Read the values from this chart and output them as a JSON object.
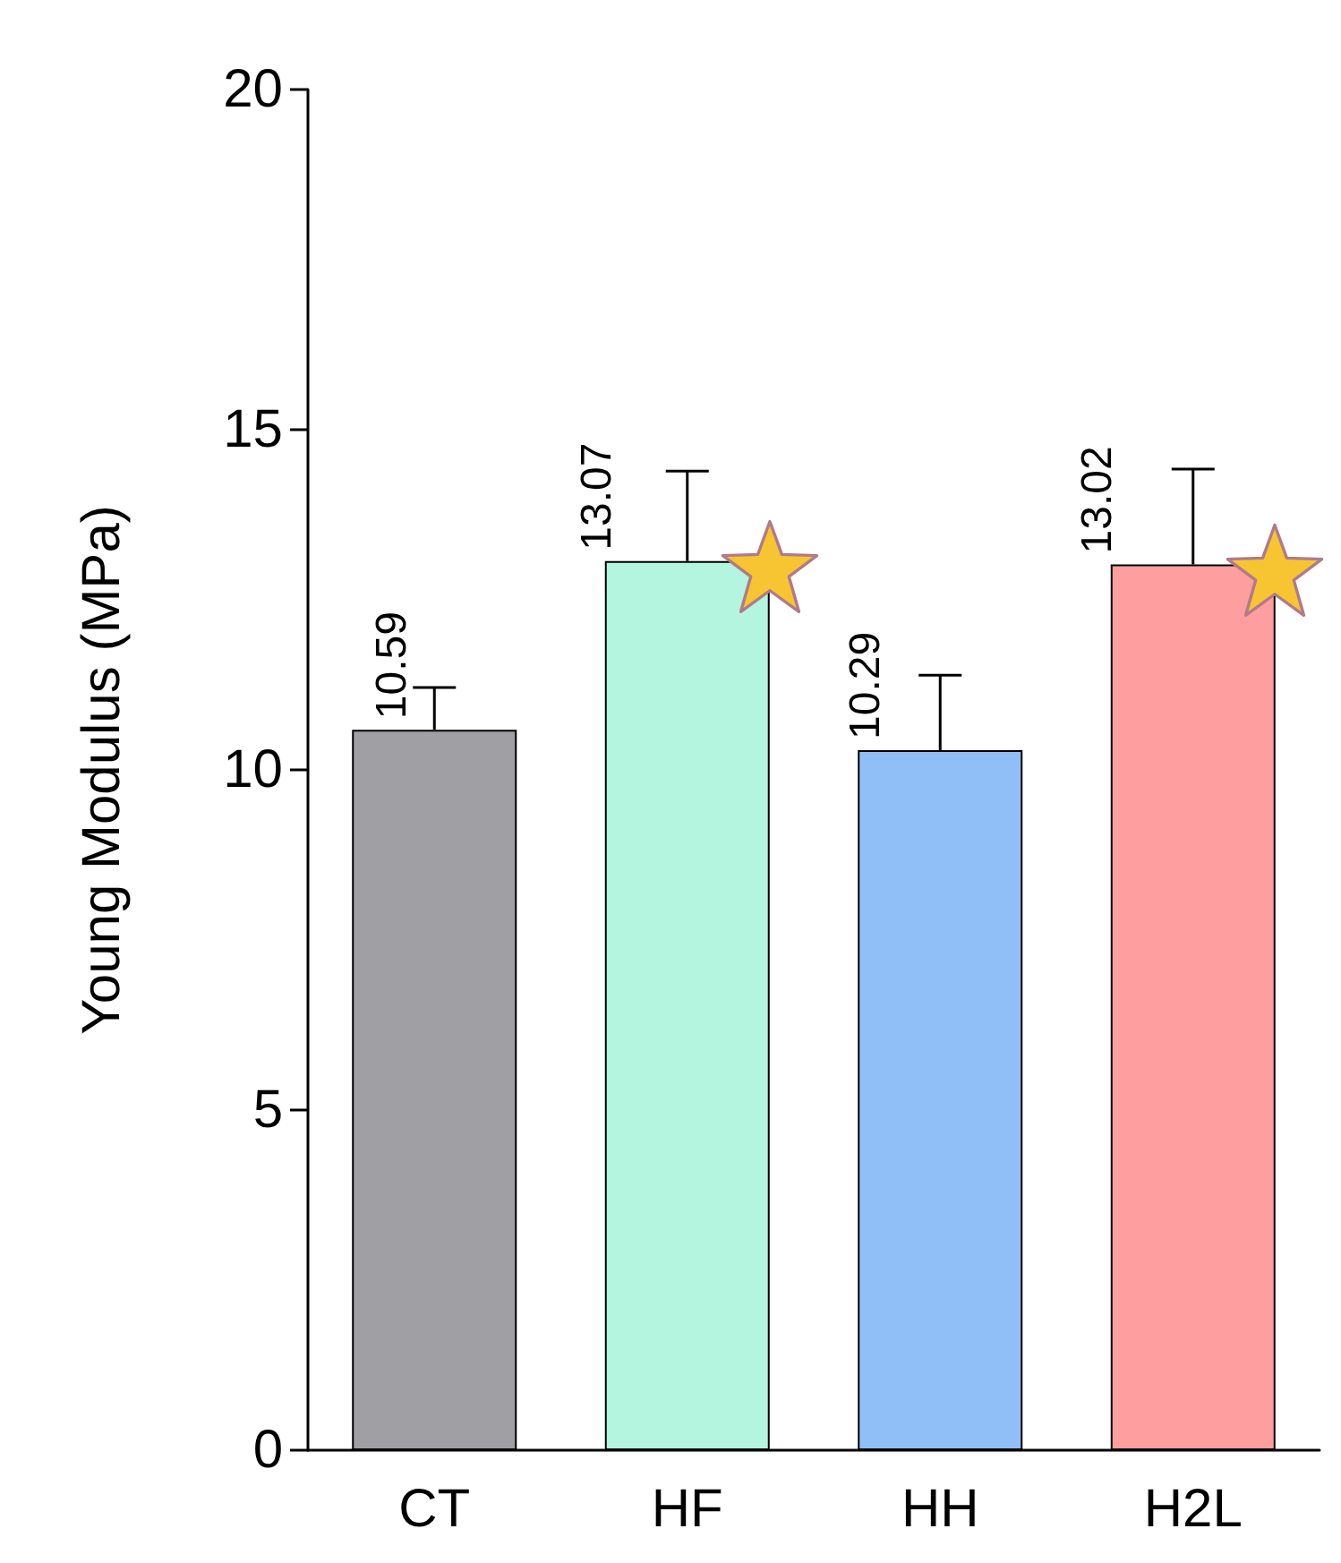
{
  "chart_data": {
    "type": "bar",
    "ylabel": "Young Modulus (MPa)",
    "categories": [
      "CT",
      "HF",
      "HH",
      "H2L"
    ],
    "values": [
      10.59,
      13.07,
      10.29,
      13.02
    ],
    "colors": [
      "#a09fa4",
      "#b3f5df",
      "#90bff8",
      "#ff9e9e"
    ],
    "errors": [
      0.62,
      1.32,
      1.1,
      1.4
    ],
    "data_labels": true,
    "ylim": [
      0,
      20
    ],
    "yticks": [
      0,
      5,
      10,
      15,
      20
    ],
    "grid": false
  }
}
